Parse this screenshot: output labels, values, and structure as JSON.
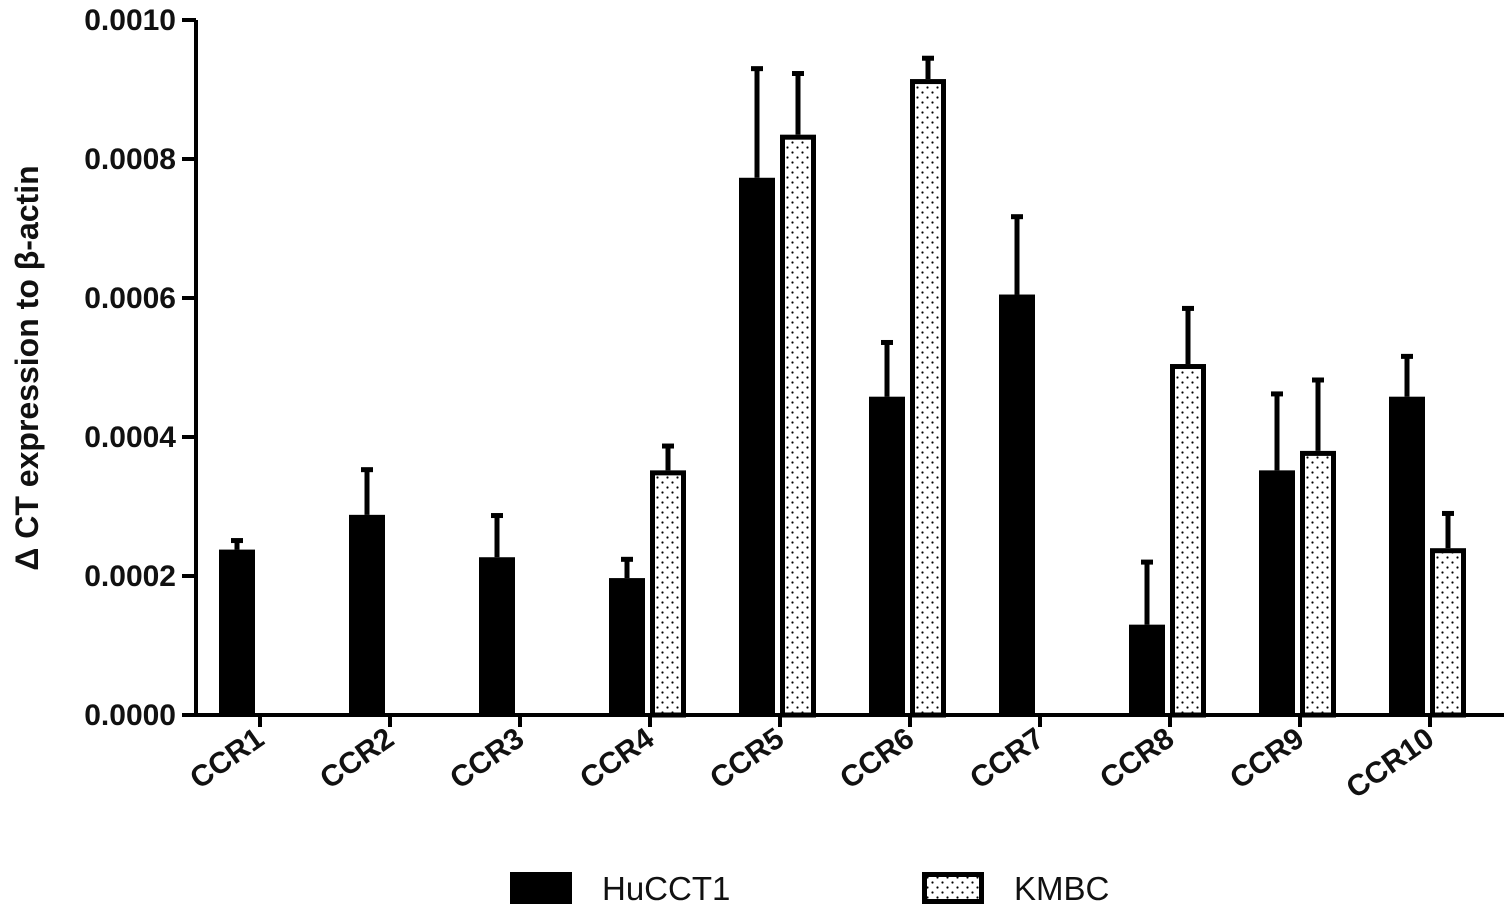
{
  "chart_data": {
    "type": "bar",
    "title": "",
    "xlabel": "",
    "ylabel": "Δ CT expression to β-actin",
    "ylim": [
      0,
      0.001
    ],
    "yticks": [
      0.0,
      0.0002,
      0.0004,
      0.0006,
      0.0008,
      0.001
    ],
    "ytick_labels": [
      "0.0000",
      "0.0002",
      "0.0004",
      "0.0006",
      "0.0008",
      "0.0010"
    ],
    "categories": [
      "CCR1",
      "CCR2",
      "CCR3",
      "CCR4",
      "CCR5",
      "CCR6",
      "CCR7",
      "CCR8",
      "CCR9",
      "CCR10"
    ],
    "series": [
      {
        "name": "HuCCT1",
        "fill": "solid",
        "color": "#000000",
        "values": [
          0.000238,
          0.000288,
          0.000227,
          0.000197,
          0.000773,
          0.000458,
          0.000605,
          0.00013,
          0.000352,
          0.000458
        ],
        "errors": [
          1.3e-05,
          6.5e-05,
          6e-05,
          2.7e-05,
          0.000157,
          7.8e-05,
          0.000112,
          9e-05,
          0.00011,
          5.8e-05
        ]
      },
      {
        "name": "KMBC",
        "fill": "dotted",
        "color": "#000000",
        "values": [
          null,
          null,
          null,
          0.000352,
          0.000835,
          0.000915,
          null,
          0.000505,
          0.00038,
          0.00024
        ],
        "errors": [
          null,
          null,
          null,
          3.5e-05,
          8.8e-05,
          3e-05,
          null,
          8e-05,
          0.000102,
          5e-05
        ]
      }
    ],
    "legend": {
      "placement": "bottom",
      "entries": [
        "HuCCT1",
        "KMBC"
      ]
    },
    "grid": false
  }
}
